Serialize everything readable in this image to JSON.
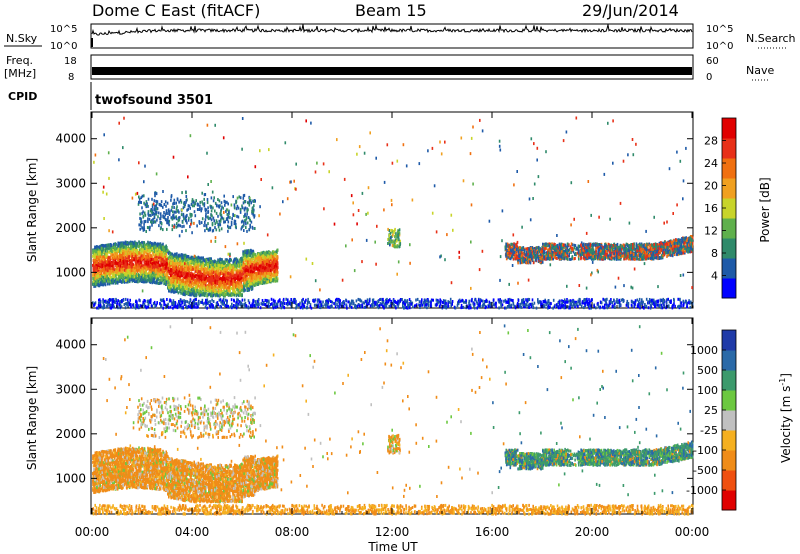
{
  "header": {
    "station": "Dome C East (fitACF)",
    "beam": "Beam 15",
    "date": "29/Jun/2014"
  },
  "nsky_panel": {
    "left_label": "N.Sky",
    "left_ticks": [
      "10^5",
      "10^0"
    ],
    "right_ticks": [
      "10^5",
      "10^0"
    ],
    "right_label": "N.Search"
  },
  "freq_panel": {
    "left_label_1": "Freq.",
    "left_label_2": "[MHz]",
    "left_ticks": [
      "18",
      "8"
    ],
    "right_ticks": [
      "60",
      "0"
    ],
    "right_label": "Nave"
  },
  "cpid": {
    "label": "CPID",
    "value": "twofsound 3501"
  },
  "chart_data": [
    {
      "type": "heatmap",
      "name": "power",
      "ylabel": "Slant Range [km]",
      "yticks": [
        1000,
        2000,
        3000,
        4000
      ],
      "ylim": [
        200,
        4600
      ],
      "xlim_hours": [
        0,
        24
      ],
      "colorbar_label": "Power [dB]",
      "colorbar_ticks": [
        "28",
        "24",
        "20",
        "16",
        "12",
        "8",
        "4"
      ],
      "colorbar_colors": [
        "#0000ff",
        "#1e5aa8",
        "#2f8a6a",
        "#5fb04c",
        "#c8d42a",
        "#f0a020",
        "#f07010",
        "#e83018",
        "#e00000"
      ]
    },
    {
      "type": "heatmap",
      "name": "velocity",
      "ylabel": "Slant Range [km]",
      "yticks": [
        1000,
        2000,
        3000,
        4000
      ],
      "ylim": [
        200,
        4600
      ],
      "xlim_hours": [
        0,
        24
      ],
      "colorbar_label": "Velocity [m s^-1]",
      "colorbar_ticks": [
        "1000",
        "500",
        "100",
        "25",
        "-25",
        "-100",
        "-500",
        "-1000"
      ],
      "colorbar_colors": [
        "#e00000",
        "#f05010",
        "#f08c18",
        "#f5b020",
        "#c0c0c0",
        "#6cc840",
        "#3c9a6c",
        "#2a6aa8",
        "#1f3aa8"
      ]
    }
  ],
  "xaxis": {
    "ticks": [
      "00:00",
      "04:00",
      "08:00",
      "12:00",
      "16:00",
      "20:00",
      "00:00"
    ],
    "label": "Time UT"
  }
}
